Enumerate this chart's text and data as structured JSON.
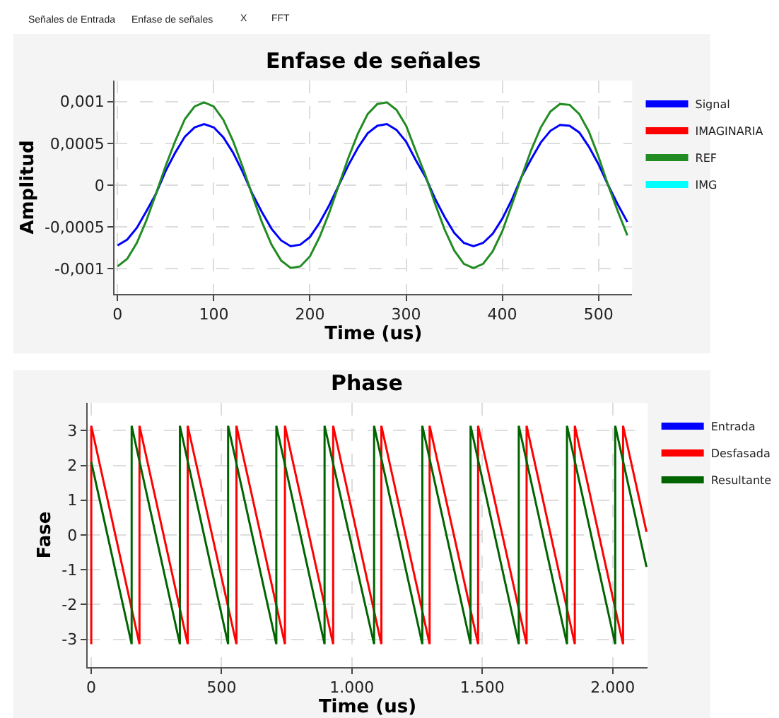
{
  "chart_data": [
    {
      "type": "line",
      "title": "Enfase de señales",
      "xlabel": "Time (us)",
      "ylabel": "Amplitud",
      "annotations": [
        "Señales de Entrada",
        "Enfase de señales",
        "X",
        "FFT"
      ],
      "x": [
        0,
        10,
        20,
        30,
        40,
        50,
        60,
        70,
        80,
        90,
        100,
        110,
        120,
        130,
        140,
        150,
        160,
        170,
        180,
        190,
        200,
        210,
        220,
        230,
        240,
        250,
        260,
        270,
        280,
        290,
        300,
        310,
        320,
        330,
        340,
        350,
        360,
        370,
        380,
        390,
        400,
        410,
        420,
        430,
        440,
        450,
        460,
        470,
        480,
        490,
        500,
        510,
        520,
        530
      ],
      "series": [
        {
          "name": "Signal",
          "color": "#0000ff",
          "values": [
            -0.00072,
            -0.00065,
            -0.00051,
            -0.00031,
            -0.0001,
            0.00017,
            0.00039,
            0.00058,
            0.00069,
            0.00073,
            0.00069,
            0.00057,
            0.00039,
            0.00016,
            -0.0001,
            -0.00032,
            -0.00052,
            -0.00066,
            -0.00073,
            -0.00071,
            -0.00062,
            -0.00045,
            -0.00024,
            0,
            0.00024,
            0.00045,
            0.00062,
            0.00071,
            0.00073,
            0.00066,
            0.00052,
            0.0003,
            0.0001,
            -0.00016,
            -0.00038,
            -0.00057,
            -0.00069,
            -0.00073,
            -0.00069,
            -0.00058,
            -0.0004,
            -0.00017,
            0.0001,
            0.00031,
            0.00051,
            0.00065,
            0.00072,
            0.00071,
            0.00063,
            0.00046,
            0.00025,
            0,
            -0.00023,
            -0.00044
          ]
        },
        {
          "name": "IMAGINARIA",
          "color": "#ff0000",
          "values": [
            null,
            null,
            null,
            null,
            null,
            null,
            null,
            null,
            null,
            null,
            null,
            null,
            null,
            null,
            null,
            null,
            null,
            null,
            null,
            null,
            null,
            null,
            null,
            null,
            null,
            null,
            null,
            null,
            null,
            null,
            null,
            null,
            null,
            null,
            null,
            null,
            null,
            null,
            null,
            null,
            null,
            null,
            null,
            null,
            null,
            null,
            null,
            null,
            null,
            null,
            null,
            null,
            null,
            null
          ]
        },
        {
          "name": "REF",
          "color": "#228b22",
          "values": [
            -0.00097,
            -0.00088,
            -0.00069,
            -0.00042,
            -0.0001,
            0.00023,
            0.00053,
            0.00079,
            0.00094,
            0.00099,
            0.00094,
            0.00078,
            0.00053,
            0.00022,
            -0.00012,
            -0.00044,
            -0.00071,
            -0.0009,
            -0.00099,
            -0.00097,
            -0.00085,
            -0.00062,
            -0.00033,
            0,
            0.00033,
            0.00062,
            0.00085,
            0.00097,
            0.00099,
            0.0009,
            0.00071,
            0.00041,
            0.00012,
            -0.00022,
            -0.00053,
            -0.00078,
            -0.00094,
            -0.00099,
            -0.00094,
            -0.00079,
            -0.00055,
            -0.00023,
            0.0001,
            0.00042,
            0.00069,
            0.00088,
            0.00097,
            0.00096,
            0.00085,
            0.00064,
            0.00034,
            0,
            -0.00031,
            -0.0006
          ]
        },
        {
          "name": "IMG",
          "color": "#00ffff",
          "values": [
            null,
            null,
            null,
            null,
            null,
            null,
            null,
            null,
            null,
            null,
            null,
            null,
            null,
            null,
            null,
            null,
            null,
            null,
            null,
            null,
            null,
            null,
            null,
            null,
            null,
            null,
            null,
            null,
            null,
            null,
            null,
            null,
            null,
            null,
            null,
            null,
            null,
            null,
            null,
            null,
            null,
            null,
            null,
            null,
            null,
            null,
            null,
            null,
            null,
            null,
            null,
            null,
            null,
            null
          ]
        }
      ],
      "xlim": [
        -3,
        535
      ],
      "xticks": [
        0,
        100,
        200,
        300,
        400,
        500
      ],
      "ylim": [
        -0.0013,
        0.00125
      ],
      "yticks": [
        {
          "value": -0.001,
          "label": "-0,001"
        },
        {
          "value": -0.0005,
          "label": "-0,0005"
        },
        {
          "value": 0,
          "label": "0"
        },
        {
          "value": 0.0005,
          "label": "0,0005"
        },
        {
          "value": 0.001,
          "label": "0,001"
        }
      ],
      "grid": true,
      "legend": "top right",
      "line_style": "solid"
    },
    {
      "type": "line",
      "title": "Phase",
      "xlabel": "Time (us)",
      "ylabel": "Fase",
      "series": [
        {
          "name": "Entrada",
          "color": "#0000ff"
        },
        {
          "name": "Desfasada",
          "color": "#ff0000",
          "x": [
            0,
            0,
            185,
            185,
            370,
            370,
            557,
            557,
            743,
            743,
            928,
            928,
            1113,
            1113,
            1298,
            1298,
            1484,
            1484,
            1670,
            1670,
            1855,
            1855,
            2040,
            2040,
            2130
          ],
          "values": [
            -3.14,
            3.14,
            -3.14,
            3.14,
            -3.14,
            3.14,
            -3.14,
            3.14,
            -3.14,
            3.14,
            -3.14,
            3.14,
            -3.14,
            3.14,
            -3.14,
            3.14,
            -3.14,
            3.14,
            -3.14,
            3.14,
            -3.14,
            3.14,
            -3.14,
            3.14,
            0.09
          ]
        },
        {
          "name": "Resultante",
          "color": "#006400",
          "x": [
            0,
            155,
            155,
            340,
            340,
            525,
            525,
            710,
            710,
            895,
            895,
            1085,
            1085,
            1270,
            1270,
            1455,
            1455,
            1640,
            1640,
            1825,
            1825,
            2010,
            2010,
            2130
          ],
          "values": [
            2.1,
            -3.14,
            3.14,
            -3.14,
            3.14,
            -3.14,
            3.14,
            -3.14,
            3.14,
            -3.14,
            3.14,
            -3.14,
            3.14,
            -3.14,
            3.14,
            -3.14,
            3.14,
            -3.14,
            3.14,
            -3.14,
            3.14,
            -3.14,
            3.14,
            -0.92
          ]
        }
      ],
      "xlim": [
        -15,
        2135
      ],
      "xticks": [
        0,
        500,
        {
          "value": 1000,
          "label": "1.000"
        },
        {
          "value": 1500,
          "label": "1.500"
        },
        {
          "value": 2000,
          "label": "2.000"
        }
      ],
      "ylim": [
        -3.8,
        3.8
      ],
      "yticks": [
        -3,
        -2,
        -1,
        0,
        1,
        2,
        3
      ],
      "grid": true,
      "legend": "top right",
      "line_style": "solid"
    }
  ]
}
